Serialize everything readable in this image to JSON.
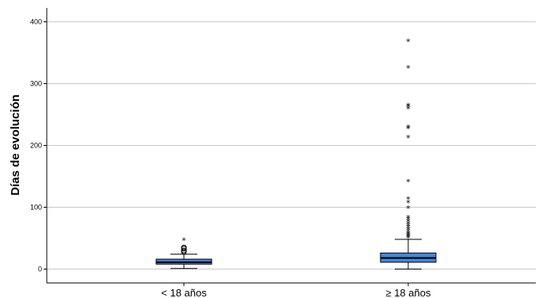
{
  "chart_data": {
    "type": "box",
    "ylabel": "Días de evolución",
    "xlabel": "",
    "ylim": [
      0,
      415
    ],
    "yticks": [
      0,
      100,
      200,
      300,
      400
    ],
    "grid": true,
    "box_color": "#4a86d4",
    "categories": [
      "< 18 años",
      "≥ 18 años"
    ],
    "boxes": [
      {
        "category": "< 18 años",
        "whisker_low": 1,
        "q1": 8,
        "median": 11,
        "q3": 16,
        "whisker_high": 24,
        "outliers": [
          28,
          30,
          33,
          35
        ],
        "extremes": [
          46
        ]
      },
      {
        "category": "≥ 18 años",
        "whisker_low": 0,
        "q1": 11,
        "median": 18,
        "q3": 26,
        "whisker_high": 48,
        "outliers": [],
        "extremes": [
          50,
          52,
          54,
          56,
          58,
          61,
          64,
          67,
          70,
          73,
          77,
          80,
          83,
          98,
          107,
          113,
          141,
          212,
          227,
          229,
          259,
          262,
          264,
          325,
          368
        ]
      }
    ]
  }
}
